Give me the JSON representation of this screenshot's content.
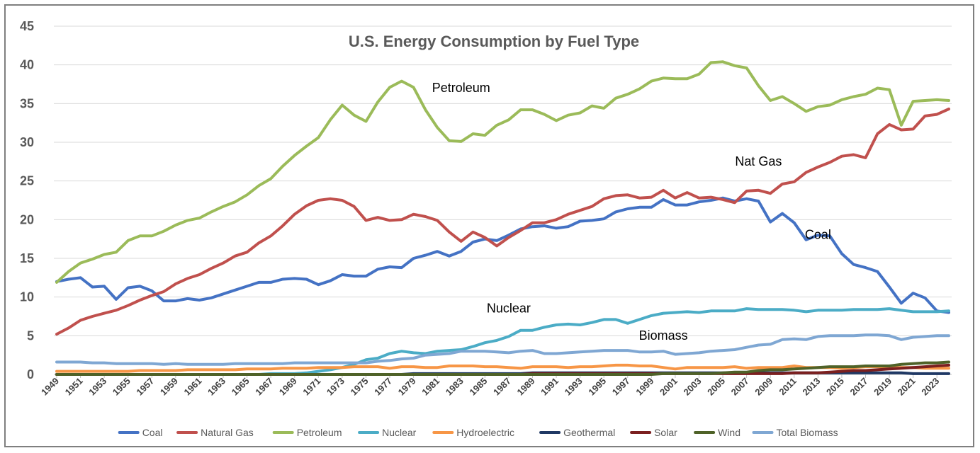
{
  "chart_data": {
    "type": "line",
    "title": "U.S. Energy Consumption by Fuel Type",
    "xlabel": "",
    "ylabel": "",
    "ylim": [
      0,
      45
    ],
    "yticks": [
      0,
      5,
      10,
      15,
      20,
      25,
      30,
      35,
      40,
      45
    ],
    "grid": "horizontal",
    "legend_position": "bottom",
    "x_tick_labels": [
      "1949",
      "1951",
      "1953",
      "1955",
      "1957",
      "1959",
      "1961",
      "1963",
      "1965",
      "1967",
      "1969",
      "1971",
      "1973",
      "1975",
      "1977",
      "1979",
      "1981",
      "1983",
      "1985",
      "1987",
      "1989",
      "1991",
      "1993",
      "1995",
      "1997",
      "1999",
      "2001",
      "2003",
      "2005",
      "2007",
      "2009",
      "2011",
      "2013",
      "2015",
      "2017",
      "2019",
      "2021",
      "2023"
    ],
    "x": [
      1949,
      1950,
      1951,
      1952,
      1953,
      1954,
      1955,
      1956,
      1957,
      1958,
      1959,
      1960,
      1961,
      1962,
      1963,
      1964,
      1965,
      1966,
      1967,
      1968,
      1969,
      1970,
      1971,
      1972,
      1973,
      1974,
      1975,
      1976,
      1977,
      1978,
      1979,
      1980,
      1981,
      1982,
      1983,
      1984,
      1985,
      1986,
      1987,
      1988,
      1989,
      1990,
      1991,
      1992,
      1993,
      1994,
      1995,
      1996,
      1997,
      1998,
      1999,
      2000,
      2001,
      2002,
      2003,
      2004,
      2005,
      2006,
      2007,
      2008,
      2009,
      2010,
      2011,
      2012,
      2013,
      2014,
      2015,
      2016,
      2017,
      2018,
      2019,
      2020,
      2021,
      2022,
      2023,
      2024
    ],
    "series": [
      {
        "name": "Coal",
        "color": "#4472C4",
        "values": [
          12.0,
          12.3,
          12.5,
          11.3,
          11.4,
          9.7,
          11.2,
          11.4,
          10.8,
          9.5,
          9.5,
          9.8,
          9.6,
          9.9,
          10.4,
          10.9,
          11.4,
          11.9,
          11.9,
          12.3,
          12.4,
          12.3,
          11.6,
          12.1,
          12.9,
          12.7,
          12.7,
          13.6,
          13.9,
          13.8,
          15.0,
          15.4,
          15.9,
          15.3,
          15.9,
          17.1,
          17.5,
          17.3,
          18.0,
          18.8,
          19.1,
          19.2,
          18.9,
          19.1,
          19.8,
          19.9,
          20.1,
          21.0,
          21.4,
          21.6,
          21.6,
          22.6,
          21.9,
          21.9,
          22.3,
          22.5,
          22.8,
          22.4,
          22.7,
          22.4,
          19.7,
          20.8,
          19.6,
          17.4,
          18.0,
          17.9,
          15.6,
          14.2,
          13.8,
          13.3,
          11.3,
          9.2,
          10.5,
          9.9,
          8.2,
          8.0
        ]
      },
      {
        "name": "Natural Gas",
        "color": "#C0504D",
        "values": [
          5.2,
          6.0,
          7.0,
          7.5,
          7.9,
          8.3,
          8.9,
          9.6,
          10.2,
          10.7,
          11.7,
          12.4,
          12.9,
          13.7,
          14.4,
          15.3,
          15.8,
          17.0,
          17.9,
          19.2,
          20.7,
          21.8,
          22.5,
          22.7,
          22.5,
          21.7,
          19.9,
          20.3,
          19.9,
          20.0,
          20.7,
          20.4,
          19.9,
          18.4,
          17.2,
          18.4,
          17.7,
          16.6,
          17.7,
          18.6,
          19.6,
          19.6,
          20.0,
          20.7,
          21.2,
          21.7,
          22.7,
          23.1,
          23.2,
          22.8,
          22.9,
          23.8,
          22.8,
          23.5,
          22.8,
          22.9,
          22.6,
          22.2,
          23.7,
          23.8,
          23.4,
          24.6,
          24.9,
          26.1,
          26.8,
          27.4,
          28.2,
          28.4,
          28.0,
          31.1,
          32.3,
          31.6,
          31.7,
          33.4,
          33.6,
          34.3
        ]
      },
      {
        "name": "Petroleum",
        "color": "#9BBB59",
        "values": [
          11.9,
          13.3,
          14.4,
          14.9,
          15.5,
          15.8,
          17.3,
          17.9,
          17.9,
          18.5,
          19.3,
          19.9,
          20.2,
          21.0,
          21.7,
          22.3,
          23.2,
          24.4,
          25.3,
          26.9,
          28.3,
          29.5,
          30.6,
          32.9,
          34.8,
          33.5,
          32.7,
          35.2,
          37.1,
          37.9,
          37.1,
          34.2,
          31.9,
          30.2,
          30.1,
          31.1,
          30.9,
          32.2,
          32.9,
          34.2,
          34.2,
          33.6,
          32.8,
          33.5,
          33.8,
          34.7,
          34.4,
          35.7,
          36.2,
          36.9,
          37.9,
          38.3,
          38.2,
          38.2,
          38.8,
          40.3,
          40.4,
          39.9,
          39.6,
          37.3,
          35.4,
          35.9,
          35.0,
          34.0,
          34.6,
          34.8,
          35.5,
          35.9,
          36.2,
          37.0,
          36.8,
          32.2,
          35.3,
          35.4,
          35.5,
          35.4
        ]
      },
      {
        "name": "Nuclear",
        "color": "#4BACC6",
        "values": [
          0,
          0,
          0,
          0,
          0,
          0,
          0,
          0,
          0,
          0,
          0,
          0,
          0,
          0,
          0,
          0,
          0,
          0,
          0.1,
          0.1,
          0.1,
          0.2,
          0.4,
          0.6,
          0.9,
          1.3,
          1.9,
          2.1,
          2.7,
          3.0,
          2.8,
          2.7,
          3.0,
          3.1,
          3.2,
          3.6,
          4.1,
          4.4,
          4.9,
          5.7,
          5.7,
          6.1,
          6.4,
          6.5,
          6.4,
          6.7,
          7.1,
          7.1,
          6.6,
          7.1,
          7.6,
          7.9,
          8.0,
          8.1,
          8.0,
          8.2,
          8.2,
          8.2,
          8.5,
          8.4,
          8.4,
          8.4,
          8.3,
          8.1,
          8.3,
          8.3,
          8.3,
          8.4,
          8.4,
          8.4,
          8.5,
          8.3,
          8.1,
          8.1,
          8.1,
          8.2
        ]
      },
      {
        "name": "Hydroelectric",
        "color": "#F79646",
        "values": [
          0.4,
          0.4,
          0.4,
          0.4,
          0.4,
          0.4,
          0.4,
          0.5,
          0.5,
          0.5,
          0.5,
          0.6,
          0.6,
          0.6,
          0.6,
          0.6,
          0.7,
          0.7,
          0.7,
          0.8,
          0.8,
          0.8,
          0.9,
          0.9,
          0.9,
          1.0,
          1.0,
          1.0,
          0.8,
          1.0,
          1.0,
          0.9,
          0.9,
          1.1,
          1.1,
          1.1,
          1.0,
          1.0,
          0.9,
          0.8,
          1.0,
          1.0,
          1.0,
          0.9,
          1.0,
          1.0,
          1.1,
          1.2,
          1.2,
          1.1,
          1.1,
          0.9,
          0.7,
          0.9,
          0.9,
          0.9,
          0.9,
          1.0,
          0.8,
          0.9,
          0.9,
          0.9,
          1.1,
          0.9,
          0.9,
          0.9,
          0.8,
          0.9,
          1.0,
          1.0,
          0.9,
          0.9,
          0.9,
          0.8,
          0.8,
          0.8
        ]
      },
      {
        "name": "Geothermal",
        "color": "#1F3864",
        "values": [
          0,
          0,
          0,
          0,
          0,
          0,
          0,
          0,
          0,
          0,
          0,
          0,
          0,
          0,
          0,
          0,
          0,
          0,
          0,
          0,
          0,
          0,
          0,
          0,
          0,
          0,
          0,
          0,
          0,
          0,
          0.1,
          0.1,
          0.1,
          0.1,
          0.1,
          0.1,
          0.1,
          0.1,
          0.1,
          0.1,
          0.2,
          0.2,
          0.2,
          0.2,
          0.2,
          0.2,
          0.2,
          0.2,
          0.2,
          0.2,
          0.2,
          0.2,
          0.2,
          0.2,
          0.2,
          0.2,
          0.2,
          0.2,
          0.2,
          0.2,
          0.2,
          0.2,
          0.2,
          0.2,
          0.2,
          0.2,
          0.2,
          0.2,
          0.2,
          0.2,
          0.2,
          0.2,
          0.1,
          0.1,
          0.1,
          0.1
        ]
      },
      {
        "name": "Solar",
        "color": "#7B1F1F",
        "values": [
          0,
          0,
          0,
          0,
          0,
          0,
          0,
          0,
          0,
          0,
          0,
          0,
          0,
          0,
          0,
          0,
          0,
          0,
          0,
          0,
          0,
          0,
          0,
          0,
          0,
          0,
          0,
          0,
          0,
          0,
          0,
          0,
          0,
          0,
          0,
          0,
          0,
          0,
          0,
          0,
          0.1,
          0.1,
          0.1,
          0.1,
          0.1,
          0.1,
          0.1,
          0.1,
          0.1,
          0.1,
          0.1,
          0.1,
          0.1,
          0.1,
          0.1,
          0.1,
          0.1,
          0.1,
          0.1,
          0.1,
          0.1,
          0.1,
          0.2,
          0.2,
          0.2,
          0.3,
          0.4,
          0.5,
          0.5,
          0.6,
          0.7,
          0.8,
          0.9,
          1.0,
          1.1,
          1.2
        ]
      },
      {
        "name": "Wind",
        "color": "#4F6228",
        "values": [
          0,
          0,
          0,
          0,
          0,
          0,
          0,
          0,
          0,
          0,
          0,
          0,
          0,
          0,
          0,
          0,
          0,
          0,
          0,
          0,
          0,
          0,
          0,
          0,
          0,
          0,
          0,
          0,
          0,
          0,
          0,
          0,
          0,
          0,
          0,
          0,
          0,
          0,
          0,
          0,
          0,
          0,
          0,
          0,
          0,
          0,
          0,
          0,
          0,
          0,
          0,
          0.1,
          0.1,
          0.1,
          0.1,
          0.1,
          0.2,
          0.3,
          0.3,
          0.5,
          0.6,
          0.6,
          0.7,
          0.8,
          0.9,
          1.0,
          1.0,
          1.0,
          1.1,
          1.1,
          1.1,
          1.3,
          1.4,
          1.5,
          1.5,
          1.6
        ]
      },
      {
        "name": "Total Biomass",
        "color": "#7FA7D3",
        "values": [
          1.6,
          1.6,
          1.6,
          1.5,
          1.5,
          1.4,
          1.4,
          1.4,
          1.4,
          1.3,
          1.4,
          1.3,
          1.3,
          1.3,
          1.3,
          1.4,
          1.4,
          1.4,
          1.4,
          1.4,
          1.5,
          1.5,
          1.5,
          1.5,
          1.5,
          1.5,
          1.5,
          1.7,
          1.8,
          2.0,
          2.1,
          2.5,
          2.6,
          2.7,
          3.0,
          3.0,
          3.0,
          2.9,
          2.8,
          3.0,
          3.1,
          2.7,
          2.7,
          2.8,
          2.9,
          3.0,
          3.1,
          3.1,
          3.1,
          2.9,
          2.9,
          3.0,
          2.6,
          2.7,
          2.8,
          3.0,
          3.1,
          3.2,
          3.5,
          3.8,
          3.9,
          4.5,
          4.6,
          4.5,
          4.9,
          5.0,
          5.0,
          5.0,
          5.1,
          5.1,
          5.0,
          4.5,
          4.8,
          4.9,
          5.0,
          5.0
        ]
      }
    ],
    "annotations": [
      {
        "text": "Petroleum",
        "x": 1983,
        "y": 36.5
      },
      {
        "text": "Nat Gas",
        "x": 2008,
        "y": 27.0
      },
      {
        "text": "Coal",
        "x": 2013,
        "y": 17.5
      },
      {
        "text": "Nuclear",
        "x": 1987,
        "y": 8.0
      },
      {
        "text": "Biomass",
        "x": 2000,
        "y": 4.5
      }
    ]
  }
}
